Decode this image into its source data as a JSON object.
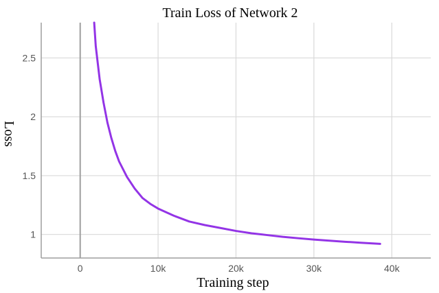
{
  "chart_data": {
    "type": "line",
    "title": "Train Loss of Network 2",
    "xlabel": "Training step",
    "ylabel": "Loss",
    "xlim": [
      -5000,
      45000
    ],
    "ylim": [
      0.8,
      2.8
    ],
    "x_ticks": [
      0,
      10000,
      20000,
      30000,
      40000
    ],
    "x_tick_labels": [
      "0",
      "10k",
      "20k",
      "30k",
      "40k"
    ],
    "y_ticks": [
      1,
      1.5,
      2,
      2.5
    ],
    "y_tick_labels": [
      "1",
      "1.5",
      "2",
      "2.5"
    ],
    "grid": true,
    "series": [
      {
        "color": "#9334e6",
        "x": [
          1800,
          2000,
          2500,
          3000,
          3500,
          4000,
          4500,
          5000,
          6000,
          7000,
          8000,
          9000,
          10000,
          12000,
          14000,
          16000,
          18000,
          20000,
          22000,
          24000,
          26000,
          28000,
          30000,
          32000,
          34000,
          36000,
          38500
        ],
        "y": [
          2.8,
          2.6,
          2.32,
          2.12,
          1.95,
          1.82,
          1.71,
          1.62,
          1.49,
          1.39,
          1.31,
          1.26,
          1.22,
          1.16,
          1.11,
          1.08,
          1.055,
          1.03,
          1.01,
          0.995,
          0.98,
          0.968,
          0.957,
          0.947,
          0.938,
          0.93,
          0.92
        ]
      }
    ]
  }
}
